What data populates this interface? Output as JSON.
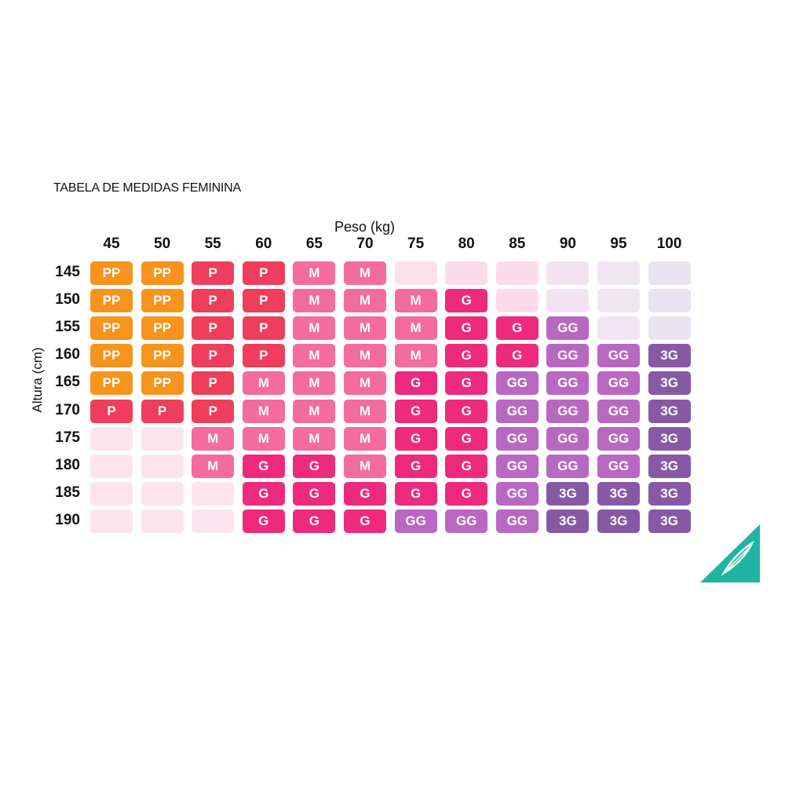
{
  "chart_data": {
    "type": "table",
    "title": "TABELA DE MEDIDAS FEMININA",
    "xlabel": "Peso (kg)",
    "ylabel": "Altura (cm)",
    "columns": [
      "45",
      "50",
      "55",
      "60",
      "65",
      "70",
      "75",
      "80",
      "85",
      "90",
      "95",
      "100"
    ],
    "rows": [
      "145",
      "150",
      "155",
      "160",
      "165",
      "170",
      "175",
      "180",
      "185",
      "190"
    ],
    "cells": [
      [
        "PP",
        "PP",
        "P",
        "P",
        "M",
        "M",
        "",
        "",
        "",
        "",
        "",
        ""
      ],
      [
        "PP",
        "PP",
        "P",
        "P",
        "M",
        "M",
        "M",
        "G",
        "",
        "",
        "",
        ""
      ],
      [
        "PP",
        "PP",
        "P",
        "P",
        "M",
        "M",
        "M",
        "G",
        "G",
        "GG",
        "",
        ""
      ],
      [
        "PP",
        "PP",
        "P",
        "P",
        "M",
        "M",
        "M",
        "G",
        "G",
        "GG",
        "GG",
        "3G"
      ],
      [
        "PP",
        "PP",
        "P",
        "M",
        "M",
        "M",
        "G",
        "G",
        "GG",
        "GG",
        "GG",
        "3G"
      ],
      [
        "P",
        "P",
        "P",
        "M",
        "M",
        "M",
        "G",
        "G",
        "GG",
        "GG",
        "GG",
        "3G"
      ],
      [
        "",
        "",
        "M",
        "M",
        "M",
        "M",
        "G",
        "G",
        "GG",
        "GG",
        "GG",
        "3G"
      ],
      [
        "",
        "",
        "M",
        "G",
        "G",
        "M",
        "G",
        "G",
        "GG",
        "GG",
        "GG",
        "3G"
      ],
      [
        "",
        "",
        "",
        "G",
        "G",
        "G",
        "G",
        "G",
        "GG",
        "3G",
        "3G",
        "3G"
      ],
      [
        "",
        "",
        "",
        "G",
        "G",
        "G",
        "GG",
        "GG",
        "GG",
        "3G",
        "3G",
        "3G"
      ]
    ],
    "size_colors": {
      "PP": "#f7941d",
      "P": "#ef3e5b",
      "M": "#f46b9e",
      "G": "#ee2a7d",
      "GG": "#b868c0",
      "3G": "#8759a5"
    },
    "empty_colors": [
      "#fde4ec",
      "#fde4ec",
      "#fde4ee",
      "#fde2ec",
      "#fde2ec",
      "#fde2ec",
      "#fde0ec",
      "#fcdcea",
      "#fcdcea",
      "#f3e3f2",
      "#f2e5f2",
      "#e9e2f0"
    ]
  },
  "logo": {
    "color": "#1fb5a3",
    "name": "feather-logo"
  }
}
